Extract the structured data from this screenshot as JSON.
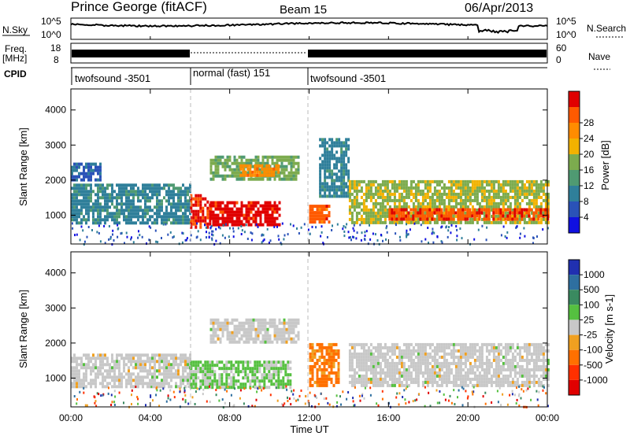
{
  "header": {
    "station": "Prince George (fitACF)",
    "beam": "Beam 15",
    "date": "06/Apr/2013"
  },
  "top_panels": {
    "nsky_label": "N.Sky",
    "nsky_tick_top": "10^5",
    "nsky_tick_bottom": "10^0",
    "nsearch_label": "N.Search",
    "nsearch_tick_top": "10^5",
    "nsearch_tick_bottom": "10^0",
    "freq_label": "Freq.",
    "freq_unit": "[MHz]",
    "freq_tick_top": "18",
    "freq_tick_bottom": "8",
    "nave_label": "Nave",
    "nave_tick_top": "60",
    "nave_tick_bottom": "0",
    "cpid_label": "CPID"
  },
  "cpid_segments": [
    {
      "start": 0,
      "end": 6,
      "label": "twofsound -3501"
    },
    {
      "start": 6,
      "end": 12,
      "label": "normal (fast) 151"
    },
    {
      "start": 12,
      "end": 24,
      "label": "twofsound -3501"
    }
  ],
  "x_axis": {
    "label": "Time UT",
    "ticks": [
      {
        "value": 0,
        "label": "00:00"
      },
      {
        "value": 4,
        "label": "04:00"
      },
      {
        "value": 8,
        "label": "08:00"
      },
      {
        "value": 12,
        "label": "12:00"
      },
      {
        "value": 16,
        "label": "16:00"
      },
      {
        "value": 20,
        "label": "20:00"
      },
      {
        "value": 24,
        "label": "00:00"
      }
    ]
  },
  "y_axis": {
    "label": "Slant Range [km]",
    "ticks": [
      "1000",
      "2000",
      "3000",
      "4000"
    ]
  },
  "power_scale": {
    "label": "Power [dB]",
    "ticks": [
      "4",
      "8",
      "12",
      "16",
      "20",
      "24",
      "28"
    ],
    "colors": [
      "#1010e0",
      "#2a52b8",
      "#2f7f9a",
      "#4f9a72",
      "#7cab4e",
      "#f2b200",
      "#ff8c00",
      "#ff5a00",
      "#e00000"
    ]
  },
  "velocity_scale": {
    "label": "Velocity [m s-1]",
    "ticks": [
      "1000",
      "500",
      "100",
      "25",
      "-25",
      "-100",
      "-500",
      "-1000"
    ],
    "colors": [
      "#2030b0",
      "#2e6fa0",
      "#3a8a60",
      "#55c040",
      "#c8c8c8",
      "#f0a020",
      "#ff7000",
      "#ff3000",
      "#e00000"
    ]
  },
  "chart_data": {
    "type": "heatmap",
    "title": "Prince George (fitACF)  Beam 15  06/Apr/2013",
    "xlabel": "Time UT",
    "ylabel": "Slant Range [km]",
    "xlim": [
      0,
      24
    ],
    "ylim": [
      180,
      4600
    ],
    "panels": [
      {
        "name": "Power",
        "units": "dB",
        "scale": [
          0,
          30
        ],
        "regions": [
          {
            "t0": 0.0,
            "t1": 6.0,
            "r0": 800,
            "r1": 1900,
            "value": 9
          },
          {
            "t0": 0.0,
            "t1": 1.5,
            "r0": 2000,
            "r1": 2500,
            "value": 6
          },
          {
            "t0": 6.0,
            "t1": 7.0,
            "r0": 700,
            "r1": 1600,
            "value": 27
          },
          {
            "t0": 7.0,
            "t1": 10.5,
            "r0": 750,
            "r1": 1400,
            "value": 28
          },
          {
            "t0": 7.0,
            "t1": 11.5,
            "r0": 2000,
            "r1": 2700,
            "value": 14
          },
          {
            "t0": 8.5,
            "t1": 10.5,
            "r0": 2150,
            "r1": 2450,
            "value": 22
          },
          {
            "t0": 12.0,
            "t1": 13.0,
            "r0": 800,
            "r1": 1300,
            "value": 25
          },
          {
            "t0": 12.5,
            "t1": 14.0,
            "r0": 1500,
            "r1": 3200,
            "value": 9
          },
          {
            "t0": 14.0,
            "t1": 24.0,
            "r0": 800,
            "r1": 2000,
            "value": 16
          },
          {
            "t0": 16.0,
            "t1": 24.0,
            "r0": 850,
            "r1": 1200,
            "value": 26
          }
        ]
      },
      {
        "name": "Velocity",
        "units": "m s-1",
        "scale": [
          -1000,
          1000
        ],
        "regions": [
          {
            "t0": 0.0,
            "t1": 6.0,
            "r0": 800,
            "r1": 1700,
            "value": 0
          },
          {
            "t0": 6.0,
            "t1": 11.0,
            "r0": 700,
            "r1": 1500,
            "value": 150
          },
          {
            "t0": 7.0,
            "t1": 11.5,
            "r0": 2000,
            "r1": 2700,
            "value": 0
          },
          {
            "t0": 12.0,
            "t1": 13.5,
            "r0": 800,
            "r1": 2000,
            "value": -400
          },
          {
            "t0": 14.0,
            "t1": 24.0,
            "r0": 800,
            "r1": 2000,
            "value": 0
          }
        ]
      }
    ]
  }
}
